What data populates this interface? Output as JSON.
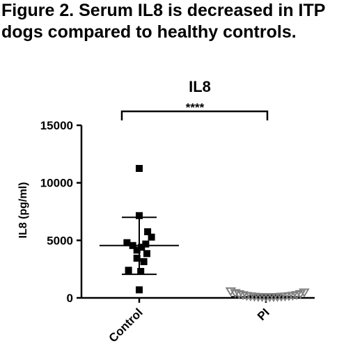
{
  "figure": {
    "title_line1": "Figure 2.  Serum IL8 is decreased in ITP",
    "title_line2": "dogs compared to healthy controls."
  },
  "chart_data": {
    "type": "scatter",
    "title": "IL8",
    "ylabel": "IL8 (pg/ml)",
    "xlabel": "",
    "ylim": [
      0,
      15000
    ],
    "yticks": [
      0,
      5000,
      10000,
      15000
    ],
    "categories": [
      "Control",
      "PI"
    ],
    "significance": "****",
    "grid": false,
    "series": [
      {
        "category": "Control",
        "marker": "square",
        "color": "#000000",
        "mean": 4550,
        "sd_upper": 7000,
        "sd_lower": 2050,
        "points": [
          {
            "offset": 0.0,
            "y": 11250
          },
          {
            "offset": 0.0,
            "y": 7150
          },
          {
            "offset": 0.22,
            "y": 5750
          },
          {
            "offset": 0.32,
            "y": 5280
          },
          {
            "offset": -0.32,
            "y": 4800
          },
          {
            "offset": 0.17,
            "y": 4680
          },
          {
            "offset": -0.17,
            "y": 4550
          },
          {
            "offset": 0.06,
            "y": 4400
          },
          {
            "offset": -0.06,
            "y": 4150
          },
          {
            "offset": 0.2,
            "y": 3850
          },
          {
            "offset": -0.06,
            "y": 3450
          },
          {
            "offset": 0.12,
            "y": 3150
          },
          {
            "offset": -0.28,
            "y": 2400
          },
          {
            "offset": 0.04,
            "y": 2300
          },
          {
            "offset": 0.0,
            "y": 700
          }
        ]
      },
      {
        "category": "PI",
        "marker": "triangle-down",
        "color": "#808080",
        "mean": 100,
        "sd_upper": 220,
        "sd_lower": 0,
        "points": [
          {
            "offset": -0.92,
            "y": 550
          },
          {
            "offset": -0.8,
            "y": 400
          },
          {
            "offset": -0.7,
            "y": 300
          },
          {
            "offset": -0.6,
            "y": 220
          },
          {
            "offset": -0.5,
            "y": 150
          },
          {
            "offset": -0.4,
            "y": 110
          },
          {
            "offset": -0.3,
            "y": 80
          },
          {
            "offset": -0.2,
            "y": 60
          },
          {
            "offset": -0.1,
            "y": 50
          },
          {
            "offset": 0.0,
            "y": 40
          },
          {
            "offset": 0.1,
            "y": 40
          },
          {
            "offset": 0.2,
            "y": 50
          },
          {
            "offset": 0.3,
            "y": 60
          },
          {
            "offset": 0.4,
            "y": 80
          },
          {
            "offset": 0.5,
            "y": 100
          },
          {
            "offset": 0.6,
            "y": 130
          },
          {
            "offset": 0.7,
            "y": 170
          },
          {
            "offset": 0.8,
            "y": 230
          },
          {
            "offset": 0.9,
            "y": 320
          },
          {
            "offset": 1.0,
            "y": 450
          }
        ]
      }
    ]
  }
}
